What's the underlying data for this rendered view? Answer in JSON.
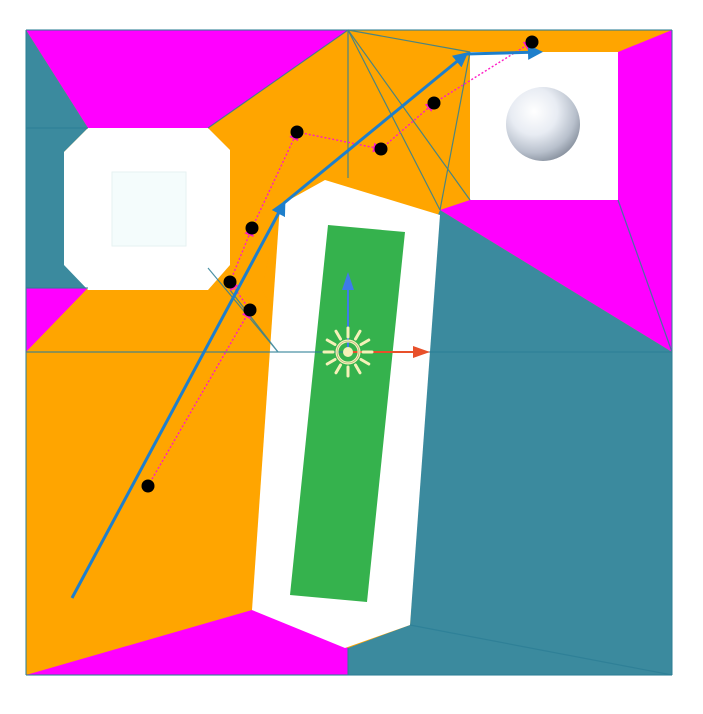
{
  "scene": {
    "title": "",
    "colors": {
      "background": "#ffffff",
      "area_orange": "#FFA500",
      "area_magenta": "#FF00FF",
      "area_teal": "#3B8A9E",
      "obstacle": "#ffffff",
      "platform": "#35B24D",
      "edge": "#2D7F96",
      "path_smoothed": "#1E7FCB",
      "path_raw": "#FF1AC6",
      "waypoint": "#000000",
      "gizmo_y_axis": "#3E7BEA",
      "gizmo_x_axis": "#E8502A",
      "light_icon": "#F5F1B8"
    },
    "icons": {
      "light": "light-gizmo-icon",
      "move_tool": "move-gizmo-icon",
      "sphere": "sphere-object-icon"
    },
    "legend": []
  }
}
